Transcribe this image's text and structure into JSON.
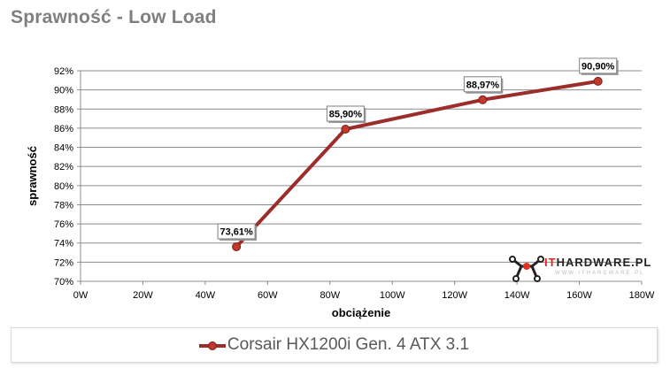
{
  "chart_data": {
    "type": "line",
    "title": "Sprawność - Low Load",
    "xlabel": "obciążenie",
    "ylabel": "sprawność",
    "xlim": [
      0,
      180
    ],
    "ylim": [
      70,
      92
    ],
    "x_ticks": [
      "0W",
      "20W",
      "40W",
      "60W",
      "80W",
      "100W",
      "120W",
      "140W",
      "160W",
      "180W"
    ],
    "y_ticks": [
      "70%",
      "72%",
      "74%",
      "76%",
      "78%",
      "80%",
      "82%",
      "84%",
      "86%",
      "88%",
      "90%",
      "92%"
    ],
    "grid": "horizontal",
    "legend_position": "bottom",
    "series": [
      {
        "name": "Corsair HX1200i Gen. 4 ATX 3.1",
        "color": "#9b2d2b",
        "x": [
          50,
          85,
          129,
          166
        ],
        "values": [
          73.61,
          85.9,
          88.97,
          90.9
        ],
        "labels": [
          "73,61%",
          "85,90%",
          "88,97%",
          "90,90%"
        ]
      }
    ]
  },
  "watermark": {
    "brand": "ITHARDWARE.PL",
    "sub": "WWW.ITHARDWARE.PL"
  }
}
